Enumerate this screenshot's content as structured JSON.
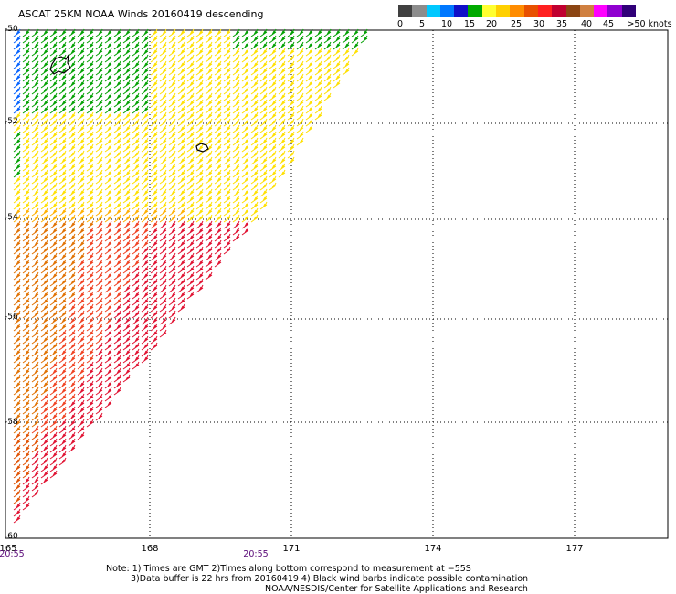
{
  "title": "ASCAT 25KM NOAA Winds 20160419 descending",
  "legend": {
    "colors": [
      "#404040",
      "#8c8c8c",
      "#00c8ff",
      "#0078ff",
      "#1010c8",
      "#00aa00",
      "#ffff30",
      "#ffd000",
      "#ff8c00",
      "#e85000",
      "#ff2020",
      "#c00030",
      "#8b4513",
      "#d08040",
      "#ff00ff",
      "#9000d0",
      "#300078"
    ],
    "labels": [
      "0",
      "5",
      "10",
      "15",
      "20",
      "25",
      "30",
      "35",
      "40",
      "45",
      ">50 knots"
    ]
  },
  "axes": {
    "lat_labels": [
      "-50",
      "-52",
      "-54",
      "-56",
      "-58",
      "-60"
    ],
    "lon_labels": [
      "165",
      "168",
      "171",
      "174",
      "177"
    ],
    "time_labels": [
      "20:55",
      "20:55"
    ]
  },
  "notes": {
    "line1": "Note: 1) Times are GMT 2)Times along bottom correspond to measurement at −55S",
    "line2": "3)Data buffer is 22 hrs from 20160419 4) Black wind barbs indicate possible contamination",
    "line3": "NOAA/NESDIS/Center for Satellite Applications and Research"
  }
}
